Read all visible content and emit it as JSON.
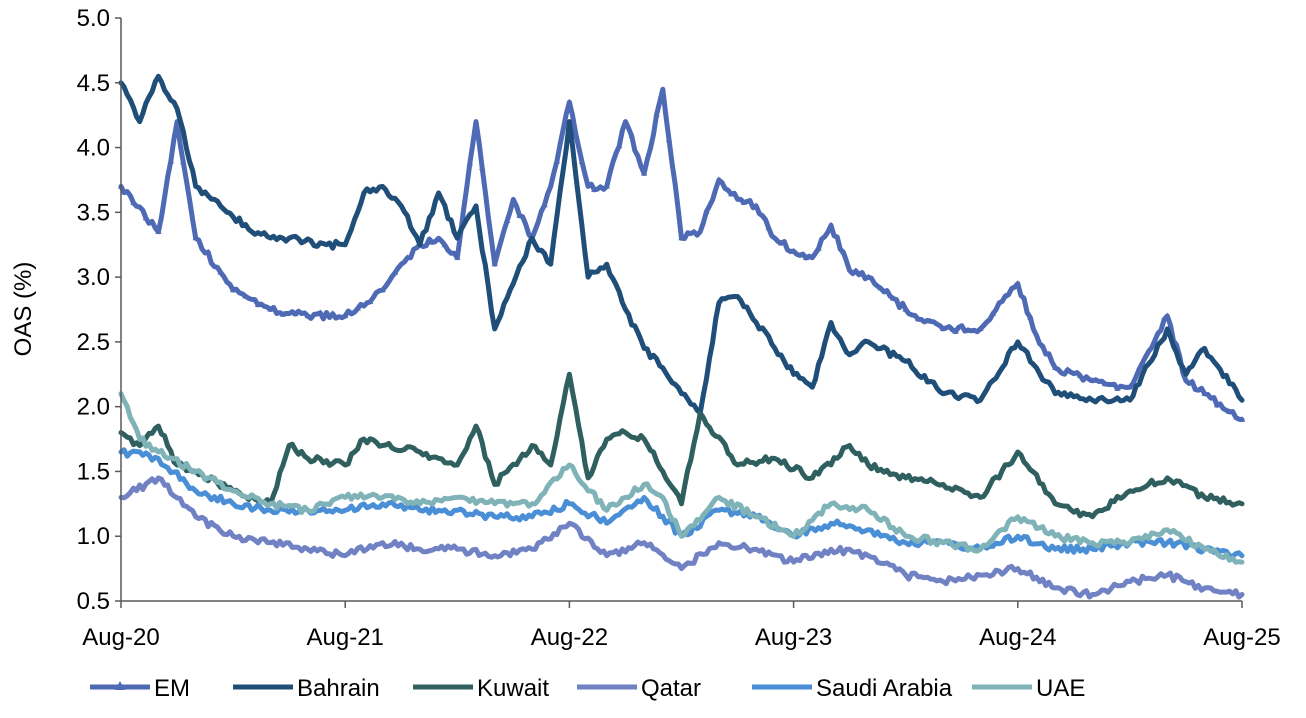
{
  "chart_data": {
    "type": "line",
    "title": "",
    "xlabel": "",
    "ylabel": "OAS (%)",
    "ylim": [
      0.5,
      5.0
    ],
    "yticks": [
      "0.5",
      "1.0",
      "1.5",
      "2.0",
      "2.5",
      "3.0",
      "3.5",
      "4.0",
      "4.5",
      "5.0"
    ],
    "xlim": [
      "2020-08",
      "2025-08"
    ],
    "xticks": [
      "Aug-20",
      "Aug-21",
      "Aug-22",
      "Aug-23",
      "Aug-24",
      "Aug-25"
    ],
    "grid": false,
    "legend_position": "bottom",
    "series": [
      {
        "name": "EM",
        "color": "#4F6AB4",
        "marker": "triangle",
        "x": [
          "2020-08",
          "2020-10",
          "2020-11",
          "2020-12",
          "2021-02",
          "2021-04",
          "2021-06",
          "2021-08",
          "2021-10",
          "2021-11",
          "2021-12",
          "2022-01",
          "2022-02",
          "2022-03",
          "2022-04",
          "2022-05",
          "2022-06",
          "2022-07",
          "2022-08",
          "2022-09",
          "2022-10",
          "2022-11",
          "2022-12",
          "2023-01",
          "2023-02",
          "2023-03",
          "2023-04",
          "2023-05",
          "2023-06",
          "2023-07",
          "2023-08",
          "2023-09",
          "2023-10",
          "2023-11",
          "2023-12",
          "2024-02",
          "2024-04",
          "2024-06",
          "2024-08",
          "2024-09",
          "2024-10",
          "2024-12",
          "2025-02",
          "2025-04",
          "2025-05",
          "2025-06",
          "2025-08"
        ],
        "y": [
          3.7,
          3.35,
          4.2,
          3.3,
          2.9,
          2.75,
          2.7,
          2.7,
          2.9,
          3.1,
          3.25,
          3.3,
          3.15,
          4.2,
          3.1,
          3.6,
          3.3,
          3.7,
          4.35,
          3.7,
          3.7,
          4.2,
          3.8,
          4.45,
          3.3,
          3.35,
          3.75,
          3.6,
          3.55,
          3.3,
          3.2,
          3.15,
          3.4,
          3.05,
          3.0,
          2.75,
          2.6,
          2.6,
          2.95,
          2.55,
          2.3,
          2.2,
          2.15,
          2.7,
          2.2,
          2.1,
          1.9
        ]
      },
      {
        "name": "Bahrain",
        "color": "#1F4E79",
        "x": [
          "2020-08",
          "2020-09",
          "2020-10",
          "2020-11",
          "2020-12",
          "2021-01",
          "2021-03",
          "2021-05",
          "2021-07",
          "2021-08",
          "2021-09",
          "2021-10",
          "2021-11",
          "2021-12",
          "2022-01",
          "2022-02",
          "2022-03",
          "2022-04",
          "2022-05",
          "2022-06",
          "2022-07",
          "2022-08",
          "2022-09",
          "2022-10",
          "2022-11",
          "2022-12",
          "2023-01",
          "2023-02",
          "2023-03",
          "2023-04",
          "2023-05",
          "2023-06",
          "2023-07",
          "2023-08",
          "2023-09",
          "2023-10",
          "2023-11",
          "2023-12",
          "2024-02",
          "2024-04",
          "2024-06",
          "2024-08",
          "2024-09",
          "2024-10",
          "2024-12",
          "2025-02",
          "2025-04",
          "2025-05",
          "2025-06",
          "2025-08"
        ],
        "y": [
          4.5,
          4.2,
          4.55,
          4.3,
          3.7,
          3.6,
          3.35,
          3.3,
          3.25,
          3.25,
          3.65,
          3.7,
          3.55,
          3.25,
          3.65,
          3.3,
          3.55,
          2.6,
          2.95,
          3.3,
          3.1,
          4.2,
          3.0,
          3.1,
          2.75,
          2.45,
          2.3,
          2.1,
          1.95,
          2.8,
          2.85,
          2.65,
          2.45,
          2.25,
          2.15,
          2.65,
          2.4,
          2.5,
          2.35,
          2.1,
          2.05,
          2.5,
          2.3,
          2.1,
          2.05,
          2.05,
          2.6,
          2.25,
          2.45,
          2.05
        ]
      },
      {
        "name": "Kuwait",
        "color": "#2F5F5F",
        "x": [
          "2020-08",
          "2020-09",
          "2020-10",
          "2020-11",
          "2020-12",
          "2021-02",
          "2021-04",
          "2021-05",
          "2021-06",
          "2021-08",
          "2021-09",
          "2021-10",
          "2021-12",
          "2022-02",
          "2022-03",
          "2022-04",
          "2022-06",
          "2022-07",
          "2022-08",
          "2022-09",
          "2022-10",
          "2022-11",
          "2022-12",
          "2023-01",
          "2023-02",
          "2023-03",
          "2023-05",
          "2023-07",
          "2023-09",
          "2023-11",
          "2023-12",
          "2024-02",
          "2024-04",
          "2024-06",
          "2024-08",
          "2024-10",
          "2024-12",
          "2025-02",
          "2025-04",
          "2025-06",
          "2025-08"
        ],
        "y": [
          1.8,
          1.7,
          1.85,
          1.55,
          1.5,
          1.35,
          1.25,
          1.7,
          1.6,
          1.55,
          1.75,
          1.7,
          1.65,
          1.55,
          1.85,
          1.4,
          1.7,
          1.55,
          2.25,
          1.45,
          1.75,
          1.8,
          1.75,
          1.5,
          1.25,
          1.95,
          1.55,
          1.6,
          1.45,
          1.7,
          1.55,
          1.45,
          1.4,
          1.3,
          1.65,
          1.25,
          1.15,
          1.35,
          1.45,
          1.3,
          1.25
        ]
      },
      {
        "name": "Qatar",
        "color": "#7082C4",
        "x": [
          "2020-08",
          "2020-10",
          "2020-12",
          "2021-02",
          "2021-04",
          "2021-06",
          "2021-08",
          "2021-10",
          "2021-12",
          "2022-02",
          "2022-04",
          "2022-06",
          "2022-08",
          "2022-10",
          "2022-12",
          "2023-02",
          "2023-04",
          "2023-06",
          "2023-08",
          "2023-10",
          "2023-12",
          "2024-02",
          "2024-04",
          "2024-06",
          "2024-08",
          "2024-10",
          "2024-12",
          "2025-02",
          "2025-04",
          "2025-06",
          "2025-08"
        ],
        "y": [
          1.3,
          1.45,
          1.15,
          1.0,
          0.95,
          0.9,
          0.85,
          0.95,
          0.9,
          0.9,
          0.85,
          0.9,
          1.1,
          0.85,
          0.95,
          0.75,
          0.95,
          0.9,
          0.8,
          0.9,
          0.85,
          0.7,
          0.65,
          0.7,
          0.75,
          0.6,
          0.55,
          0.65,
          0.7,
          0.6,
          0.55
        ]
      },
      {
        "name": "Saudi Arabia",
        "color": "#4A8ED6",
        "x": [
          "2020-08",
          "2020-10",
          "2020-12",
          "2021-02",
          "2021-04",
          "2021-06",
          "2021-08",
          "2021-10",
          "2021-12",
          "2022-02",
          "2022-04",
          "2022-06",
          "2022-08",
          "2022-10",
          "2022-12",
          "2023-02",
          "2023-04",
          "2023-06",
          "2023-08",
          "2023-10",
          "2023-12",
          "2024-02",
          "2024-04",
          "2024-06",
          "2024-08",
          "2024-10",
          "2024-12",
          "2025-02",
          "2025-04",
          "2025-06",
          "2025-08"
        ],
        "y": [
          1.65,
          1.6,
          1.35,
          1.25,
          1.2,
          1.2,
          1.2,
          1.25,
          1.2,
          1.2,
          1.15,
          1.15,
          1.25,
          1.1,
          1.3,
          1.0,
          1.2,
          1.15,
          1.0,
          1.1,
          1.05,
          0.95,
          0.95,
          0.9,
          1.0,
          0.9,
          0.9,
          0.95,
          0.95,
          0.9,
          0.85
        ]
      },
      {
        "name": "UAE",
        "color": "#7FB3B8",
        "x": [
          "2020-08",
          "2020-09",
          "2020-10",
          "2020-12",
          "2021-02",
          "2021-04",
          "2021-06",
          "2021-08",
          "2021-10",
          "2021-12",
          "2022-02",
          "2022-04",
          "2022-06",
          "2022-08",
          "2022-10",
          "2022-12",
          "2023-01",
          "2023-02",
          "2023-04",
          "2023-06",
          "2023-08",
          "2023-10",
          "2023-12",
          "2024-02",
          "2024-04",
          "2024-06",
          "2024-08",
          "2024-10",
          "2024-12",
          "2025-02",
          "2025-04",
          "2025-06",
          "2025-08"
        ],
        "y": [
          2.1,
          1.75,
          1.65,
          1.5,
          1.35,
          1.25,
          1.2,
          1.3,
          1.3,
          1.25,
          1.3,
          1.25,
          1.25,
          1.55,
          1.2,
          1.4,
          1.3,
          1.0,
          1.3,
          1.15,
          1.0,
          1.25,
          1.2,
          1.0,
          0.95,
          0.9,
          1.15,
          1.0,
          0.95,
          0.95,
          1.05,
          0.9,
          0.8
        ]
      }
    ]
  }
}
